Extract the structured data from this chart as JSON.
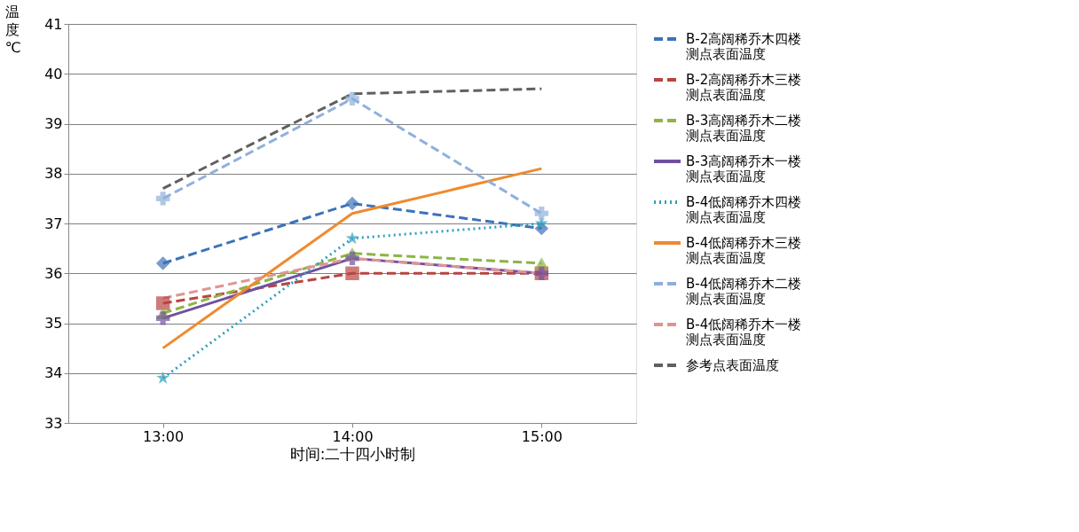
{
  "chart_data": {
    "type": "line",
    "xlabel": "时间:二十四小时制",
    "ylabel": "温度℃",
    "categories": [
      "13:00",
      "14:00",
      "15:00"
    ],
    "ylim": [
      33,
      41
    ],
    "yticks": [
      33,
      34,
      35,
      36,
      37,
      38,
      39,
      40,
      41
    ],
    "grid": "y",
    "legend": "right",
    "series": [
      {
        "name": "B-2高阔稀乔木四楼测点表面温度",
        "color": "#3d72b8",
        "values": [
          36.2,
          37.4,
          36.9
        ],
        "marker": "diamond",
        "line_style": "dashed"
      },
      {
        "name": "B-2高阔稀乔木三楼测点表面温度",
        "color": "#b94441",
        "values": [
          35.4,
          36.0,
          36.0
        ],
        "marker": "square",
        "line_style": "dashed"
      },
      {
        "name": "B-3高阔稀乔木二楼测点表面温度",
        "color": "#8db545",
        "values": [
          35.2,
          36.4,
          36.2
        ],
        "marker": "triangle",
        "line_style": "dashed"
      },
      {
        "name": "B-3高阔稀乔木一楼测点表面温度",
        "color": "#7051a0",
        "values": [
          35.1,
          36.3,
          36.0
        ],
        "marker": "cross",
        "line_style": "solid"
      },
      {
        "name": "B-4低阔稀乔木四楼测点表面温度",
        "color": "#2fa0bb",
        "values": [
          33.9,
          36.7,
          37.0
        ],
        "marker": "star",
        "line_style": "dotted"
      },
      {
        "name": "B-4低阔稀乔木三楼测点表面温度",
        "color": "#ef8a2e",
        "values": [
          34.5,
          37.2,
          38.1
        ],
        "marker": "none",
        "line_style": "solid"
      },
      {
        "name": "B-4低阔稀乔木二楼测点表面温度",
        "color": "#8fb0dc",
        "values": [
          37.5,
          39.5,
          37.2
        ],
        "marker": "cross",
        "line_style": "dashed"
      },
      {
        "name": "B-4低阔稀乔木一楼测点表面温度",
        "color": "#dc9694",
        "values": [
          35.5,
          36.3,
          36.0
        ],
        "marker": "none",
        "line_style": "dashed"
      },
      {
        "name": "参考点表面温度",
        "color": "#606060",
        "values": [
          37.7,
          39.6,
          39.7
        ],
        "marker": "none",
        "line_style": "dashed"
      }
    ]
  }
}
